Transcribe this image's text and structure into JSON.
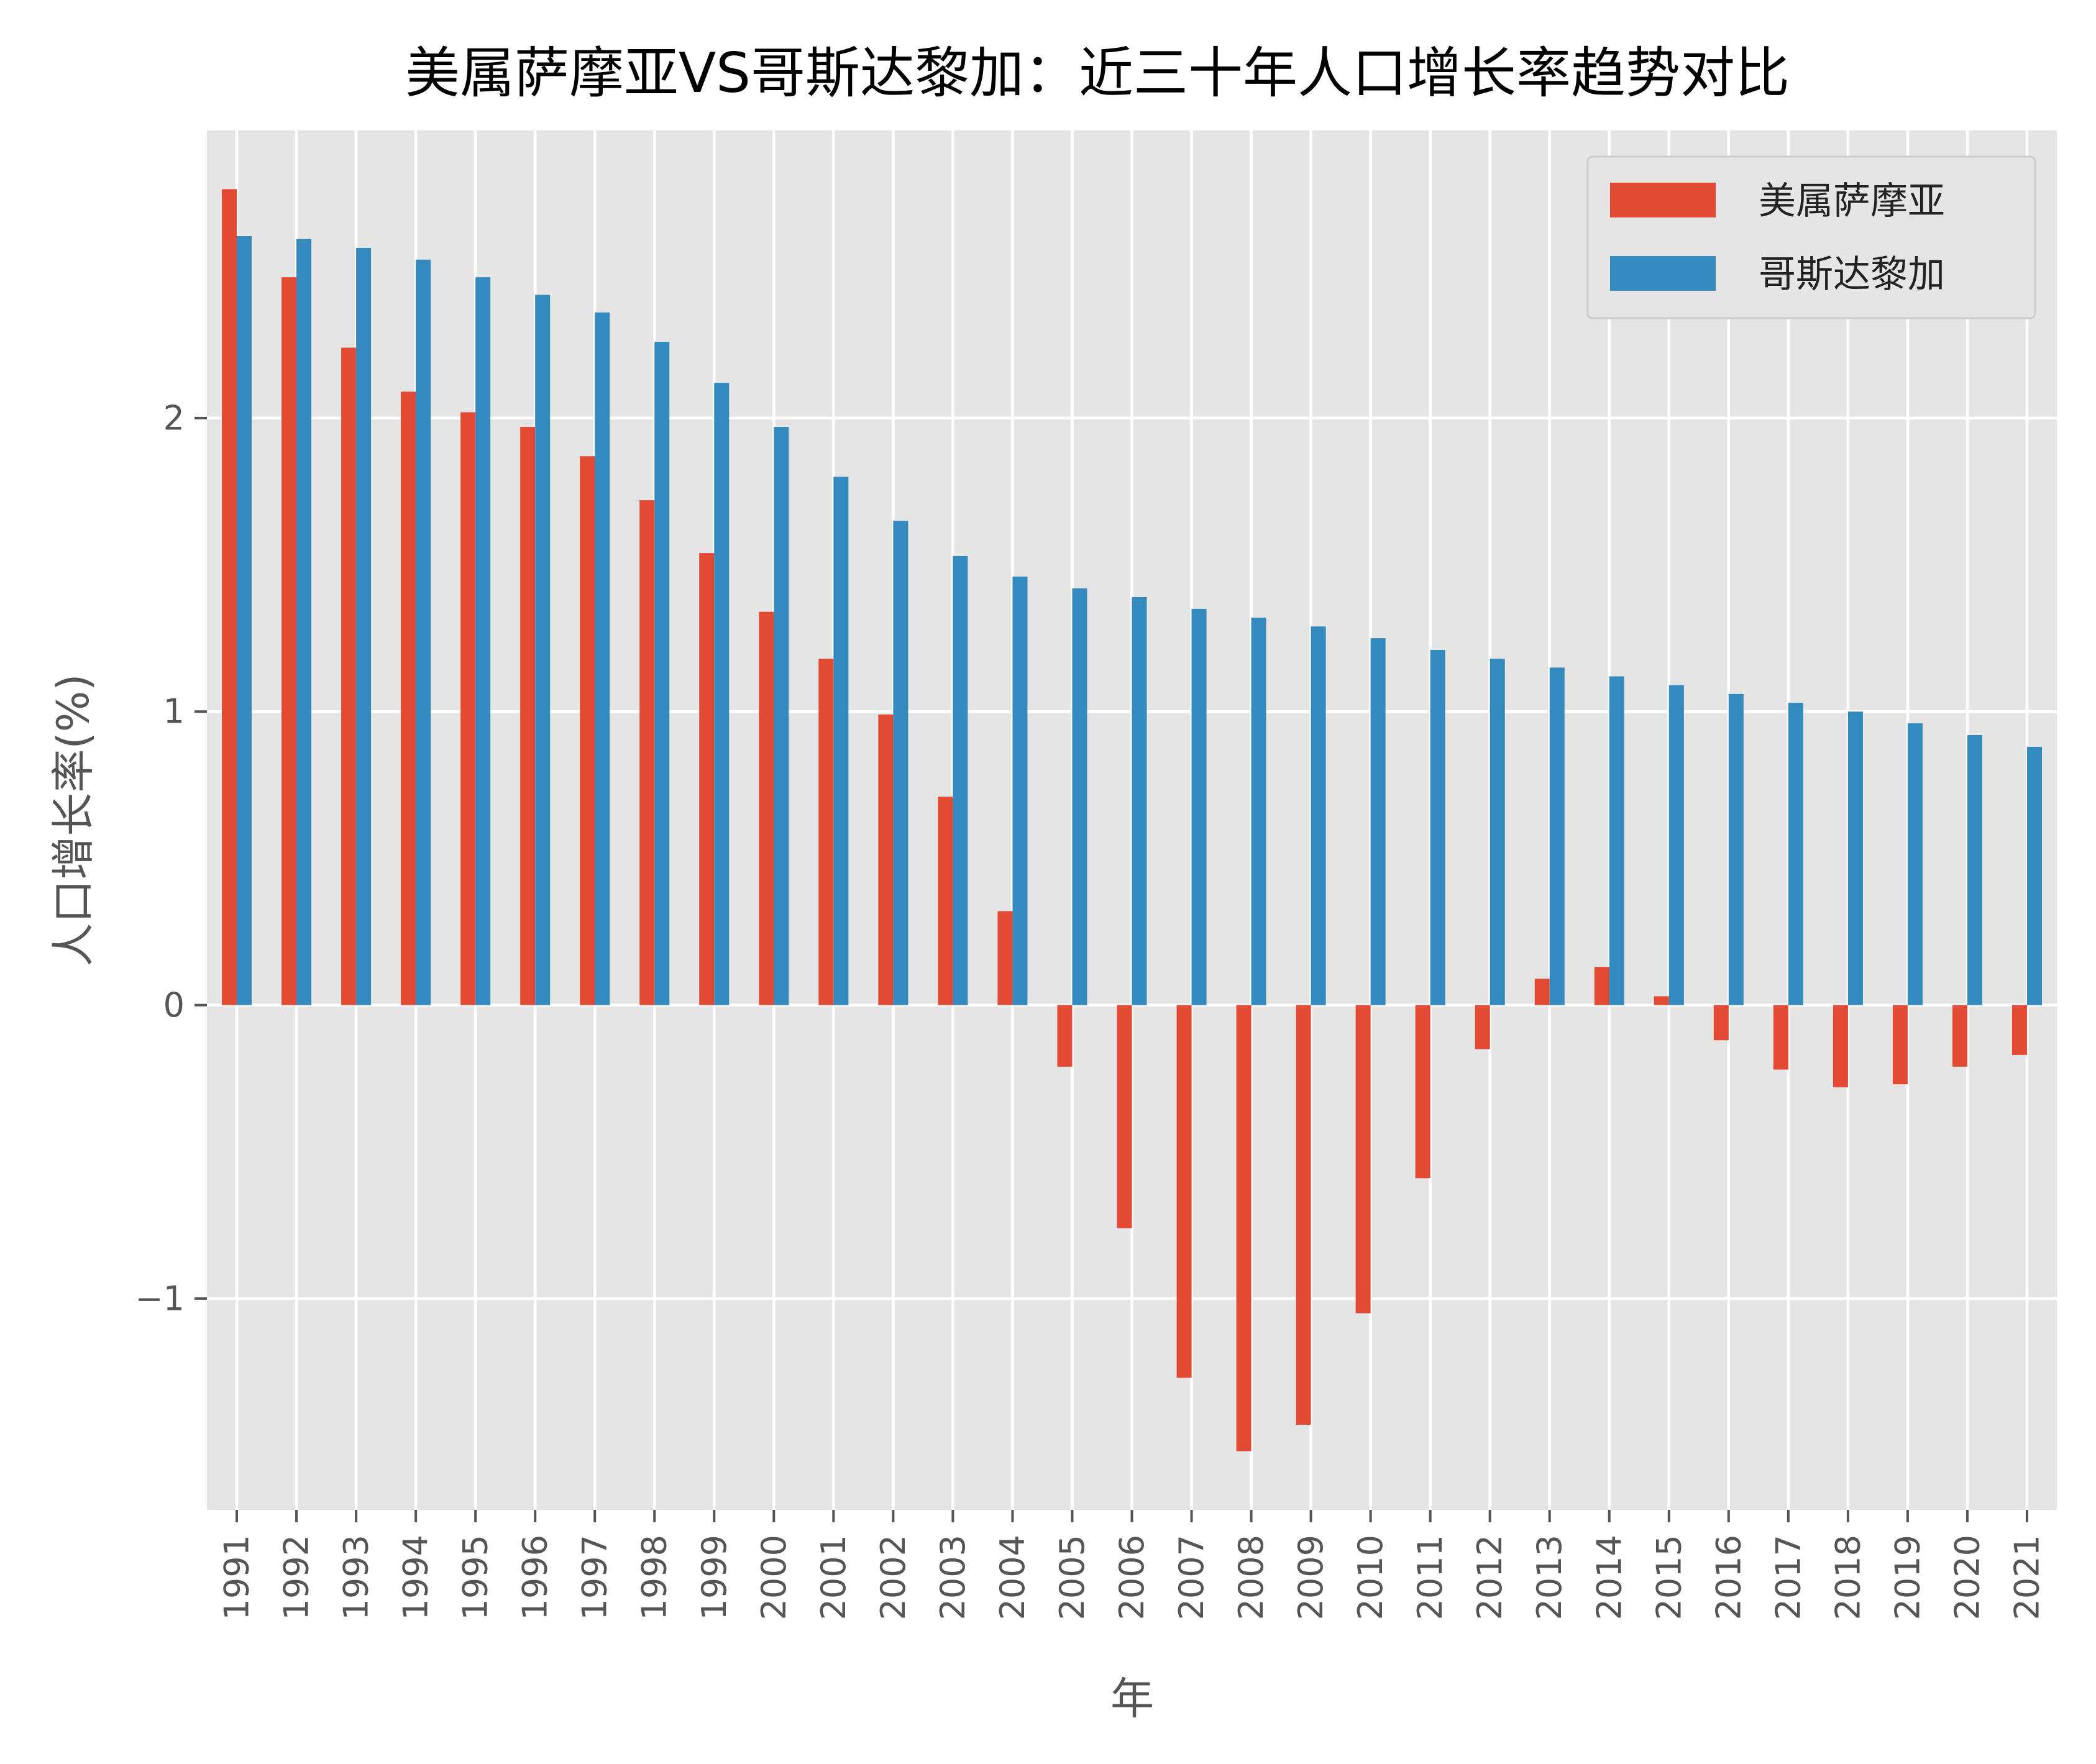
{
  "chart_data": {
    "type": "bar",
    "title": "美属萨摩亚VS哥斯达黎加：近三十年人口增长率趋势对比",
    "xlabel": "年",
    "ylabel": "人口增长率(%)",
    "categories": [
      "1991",
      "1992",
      "1993",
      "1994",
      "1995",
      "1996",
      "1997",
      "1998",
      "1999",
      "2000",
      "2001",
      "2002",
      "2003",
      "2004",
      "2005",
      "2006",
      "2007",
      "2008",
      "2009",
      "2010",
      "2011",
      "2012",
      "2013",
      "2014",
      "2015",
      "2016",
      "2017",
      "2018",
      "2019",
      "2020",
      "2021"
    ],
    "series": [
      {
        "name": "美属萨摩亚",
        "color": "#E24A33",
        "values": [
          2.78,
          2.48,
          2.24,
          2.09,
          2.02,
          1.97,
          1.87,
          1.72,
          1.54,
          1.34,
          1.18,
          0.99,
          0.71,
          0.32,
          -0.21,
          -0.76,
          -1.27,
          -1.52,
          -1.43,
          -1.05,
          -0.59,
          -0.15,
          0.09,
          0.13,
          0.03,
          -0.12,
          -0.22,
          -0.28,
          -0.27,
          -0.21,
          -0.17
        ]
      },
      {
        "name": "哥斯达黎加",
        "color": "#348ABD",
        "values": [
          2.62,
          2.61,
          2.58,
          2.54,
          2.48,
          2.42,
          2.36,
          2.26,
          2.12,
          1.97,
          1.8,
          1.65,
          1.53,
          1.46,
          1.42,
          1.39,
          1.35,
          1.32,
          1.29,
          1.25,
          1.21,
          1.18,
          1.15,
          1.12,
          1.09,
          1.06,
          1.03,
          1.0,
          0.96,
          0.92,
          0.88
        ]
      }
    ],
    "yticks": [
      -1,
      0,
      1,
      2
    ],
    "ylim": [
      -1.72,
      2.98
    ],
    "grid": true,
    "legend": "top-right"
  }
}
